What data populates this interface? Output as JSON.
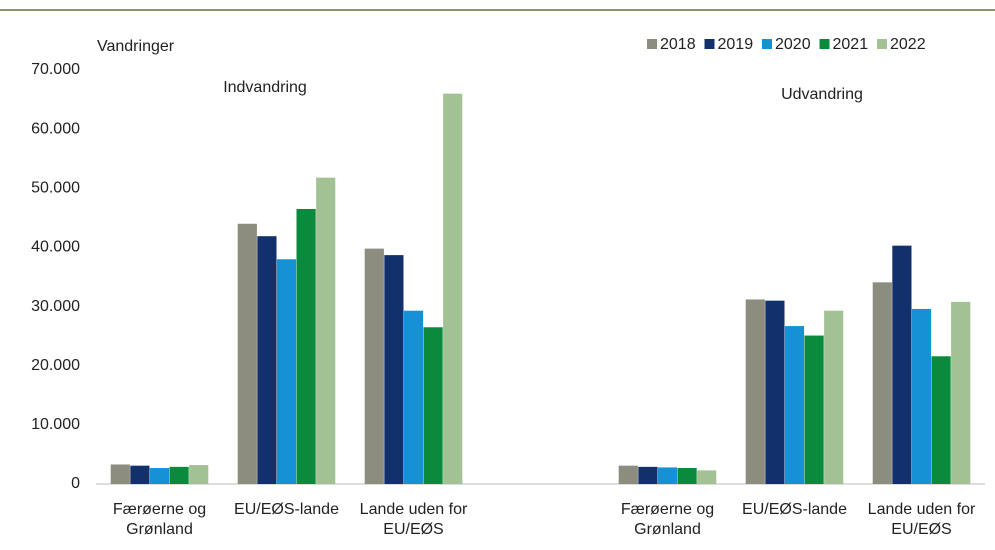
{
  "chart_data": {
    "type": "bar",
    "y_label": "Vandringer",
    "annotations": [
      "Indvandring",
      "Udvandring"
    ],
    "categories": [
      "Færøerne og Grønland",
      "EU/EØS-lande",
      "Lande uden for EU/EØS",
      null,
      "Færøerne og Grønland",
      "EU/EØS-lande",
      "Lande uden for EU/EØS"
    ],
    "series": [
      {
        "name": "2018",
        "color": "#8c8c7f",
        "values": [
          3300,
          44000,
          39800,
          null,
          3100,
          31200,
          34100
        ]
      },
      {
        "name": "2019",
        "color": "#12306b",
        "values": [
          3100,
          41900,
          38700,
          null,
          2900,
          31000,
          40300
        ]
      },
      {
        "name": "2020",
        "color": "#1591d5",
        "values": [
          2700,
          38000,
          29300,
          null,
          2800,
          26700,
          29600
        ]
      },
      {
        "name": "2021",
        "color": "#0a8a3c",
        "values": [
          2900,
          46500,
          26500,
          null,
          2700,
          25100,
          21600
        ]
      },
      {
        "name": "2022",
        "color": "#a3c293",
        "values": [
          3200,
          51800,
          66000,
          null,
          2300,
          29300,
          30800
        ]
      }
    ],
    "ylim": [
      0,
      70000
    ],
    "yticks": [
      0,
      {
        "value": 10000,
        "label": "10.000"
      },
      {
        "value": 20000,
        "label": "20.000"
      },
      {
        "value": 30000,
        "label": "30.000"
      },
      {
        "value": 40000,
        "label": "40.000"
      },
      {
        "value": 50000,
        "label": "50.000"
      },
      {
        "value": 60000,
        "label": "60.000"
      },
      {
        "value": 70000,
        "label": "70.000"
      }
    ],
    "grid": false,
    "legend": "top-right"
  }
}
